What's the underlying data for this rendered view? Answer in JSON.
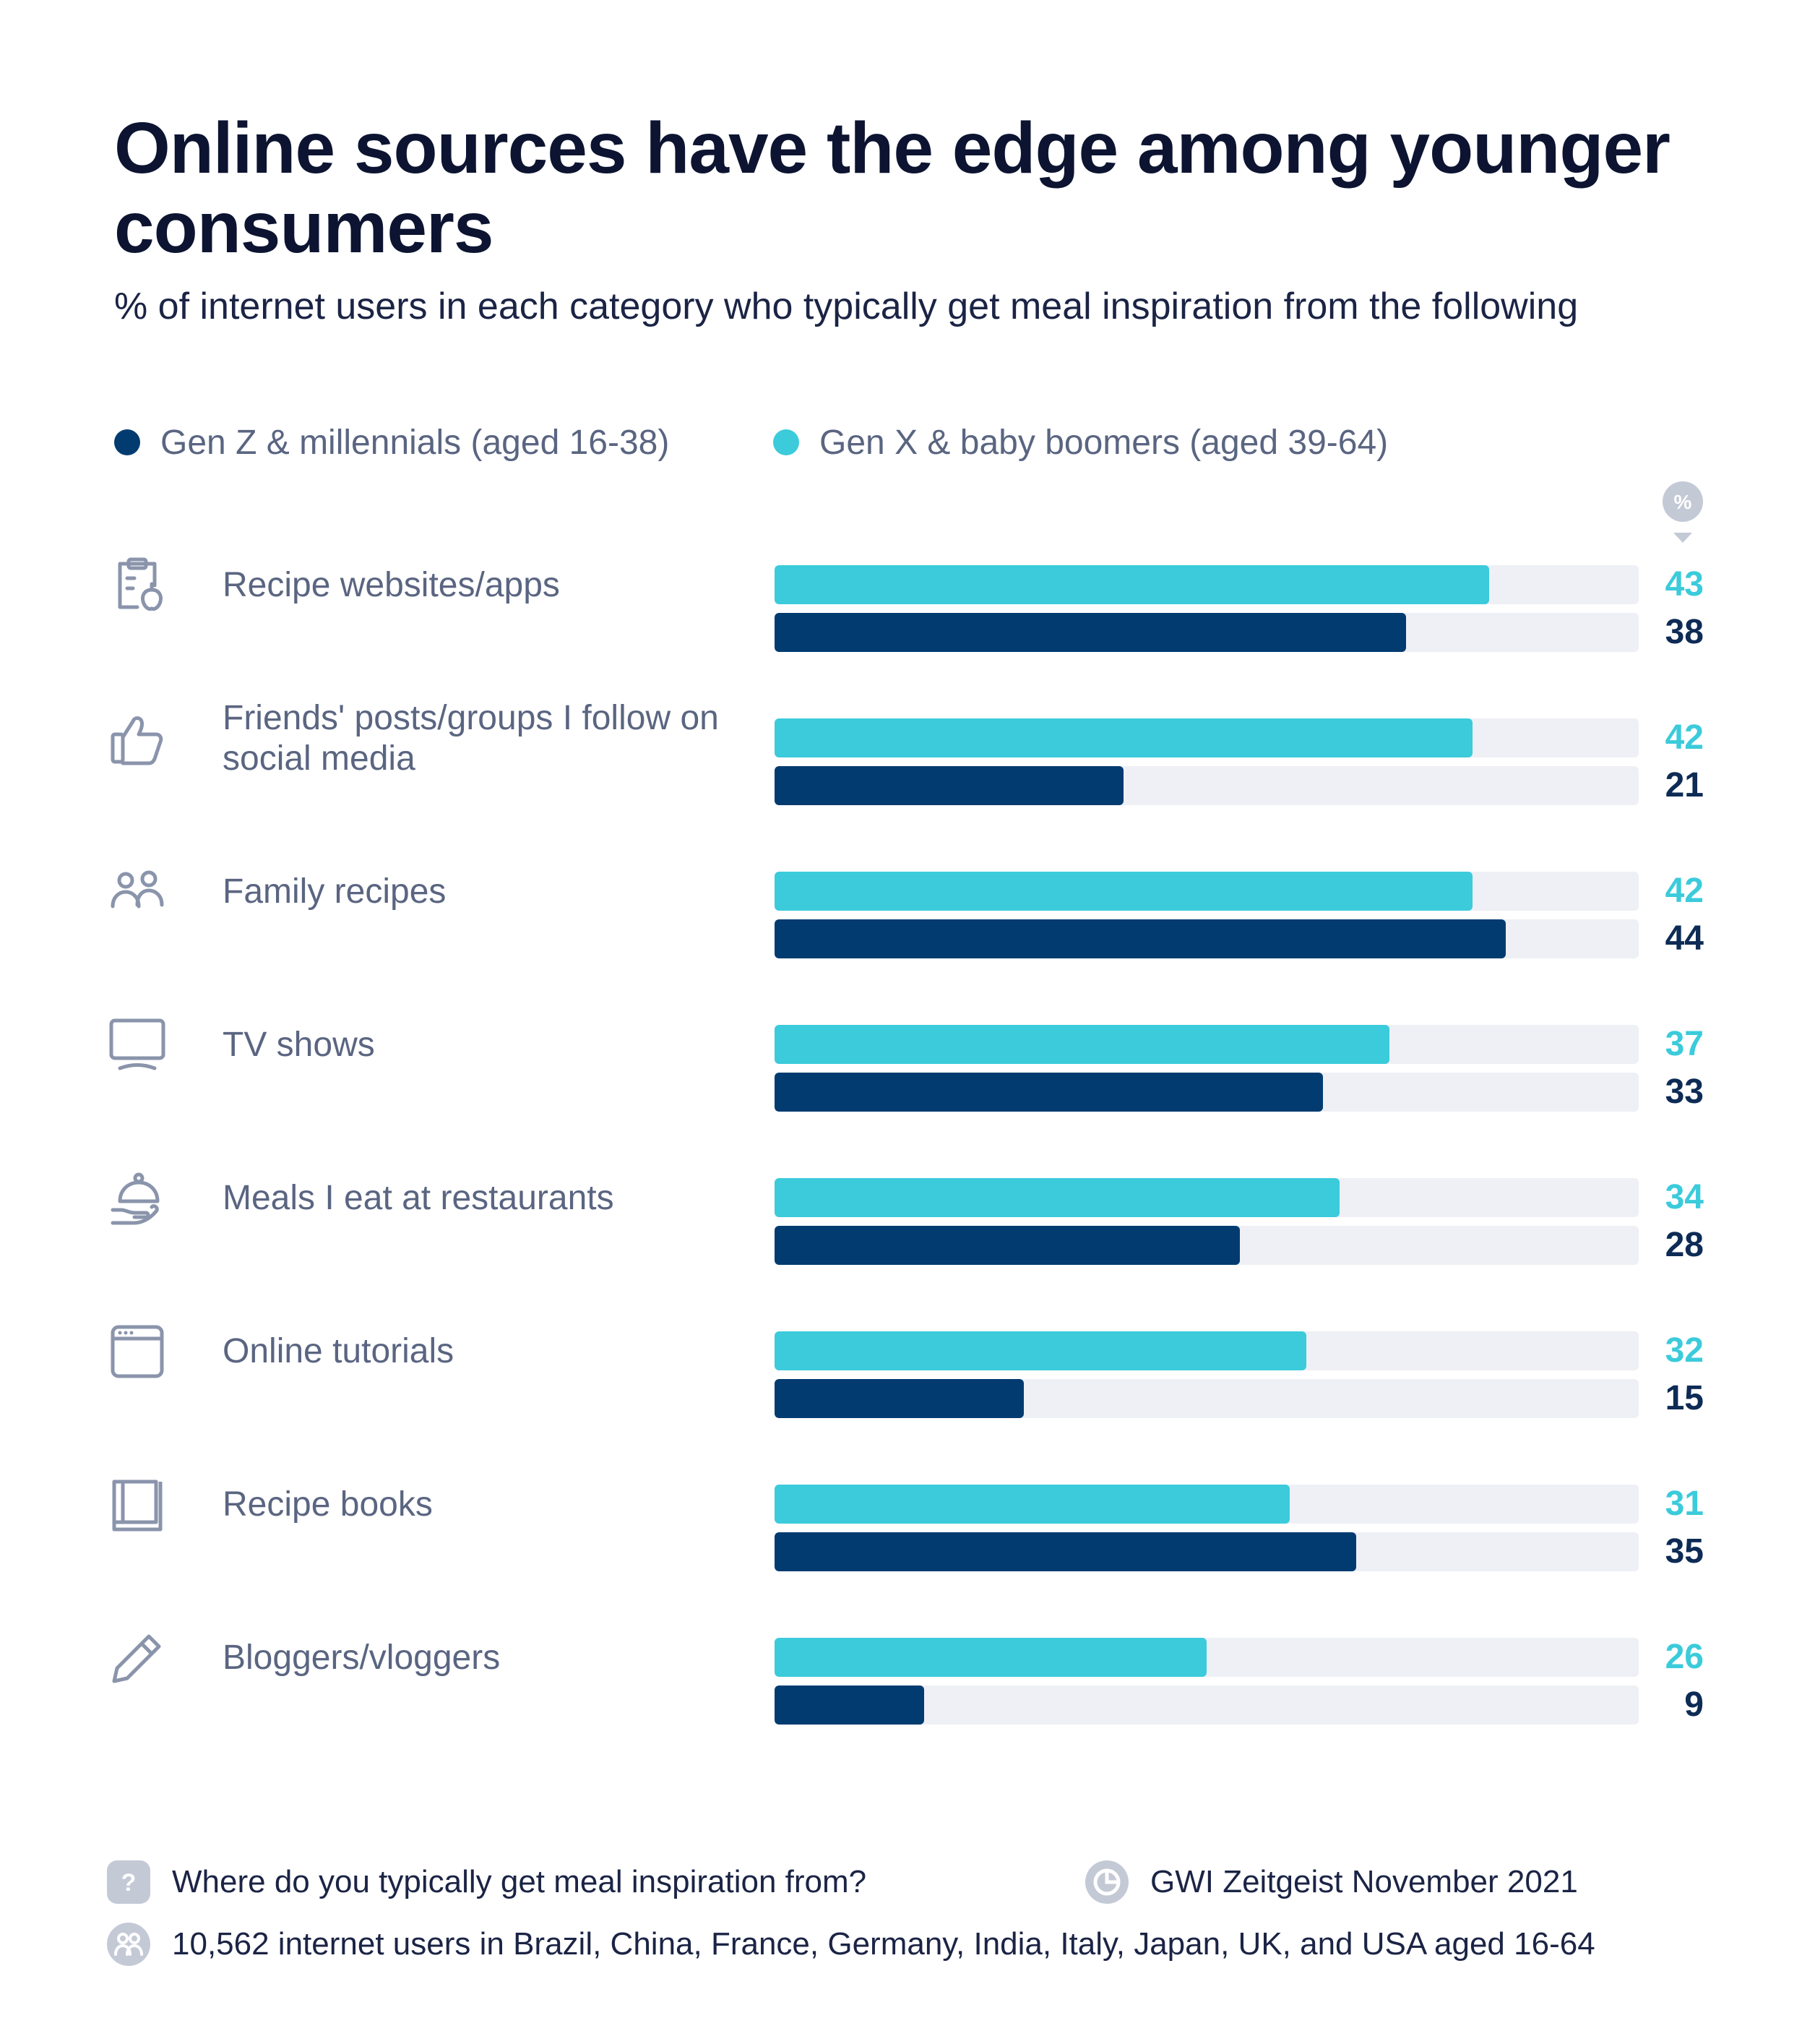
{
  "title": "Online sources have the edge among younger consumers",
  "subtitle": "% of internet users in each category who typically get meal inspiration from the following",
  "legend": [
    {
      "label": "Gen Z & millennials (aged 16-38)",
      "color": "#013b70"
    },
    {
      "label": "Gen X & baby boomers (aged 39-64)",
      "color": "#3bcbdb"
    }
  ],
  "unit_badge": "%",
  "chart_data": {
    "type": "bar",
    "orientation": "horizontal",
    "title": "Online sources have the edge among younger consumers",
    "subtitle": "% of internet users in each category who typically get meal inspiration from the following",
    "xlim": [
      0,
      52
    ],
    "categories": [
      "Recipe websites/apps",
      "Friends' posts/groups I follow on social media",
      "Family recipes",
      "TV shows",
      "Meals I eat at restaurants",
      "Online tutorials",
      "Recipe books",
      "Bloggers/vloggers"
    ],
    "category_icons": [
      "clipboard-apple-icon",
      "thumbs-up-icon",
      "people-icon",
      "tv-icon",
      "serving-cloche-icon",
      "browser-window-icon",
      "book-icon",
      "pencil-icon"
    ],
    "series": [
      {
        "name": "Gen X & baby boomers (aged 39-64)",
        "color": "#3bcbdb",
        "values": [
          43,
          42,
          42,
          37,
          34,
          32,
          31,
          26
        ]
      },
      {
        "name": "Gen Z & millennials (aged 16-38)",
        "color": "#013b70",
        "values": [
          38,
          21,
          44,
          33,
          28,
          15,
          35,
          9
        ]
      }
    ]
  },
  "footer": {
    "question": "Where do you typically get meal inspiration from?",
    "source": "GWI Zeitgeist November 2021",
    "base": "10,562 internet users in Brazil, China, France, Germany, India, Italy, Japan, UK, and USA aged 16-64"
  }
}
